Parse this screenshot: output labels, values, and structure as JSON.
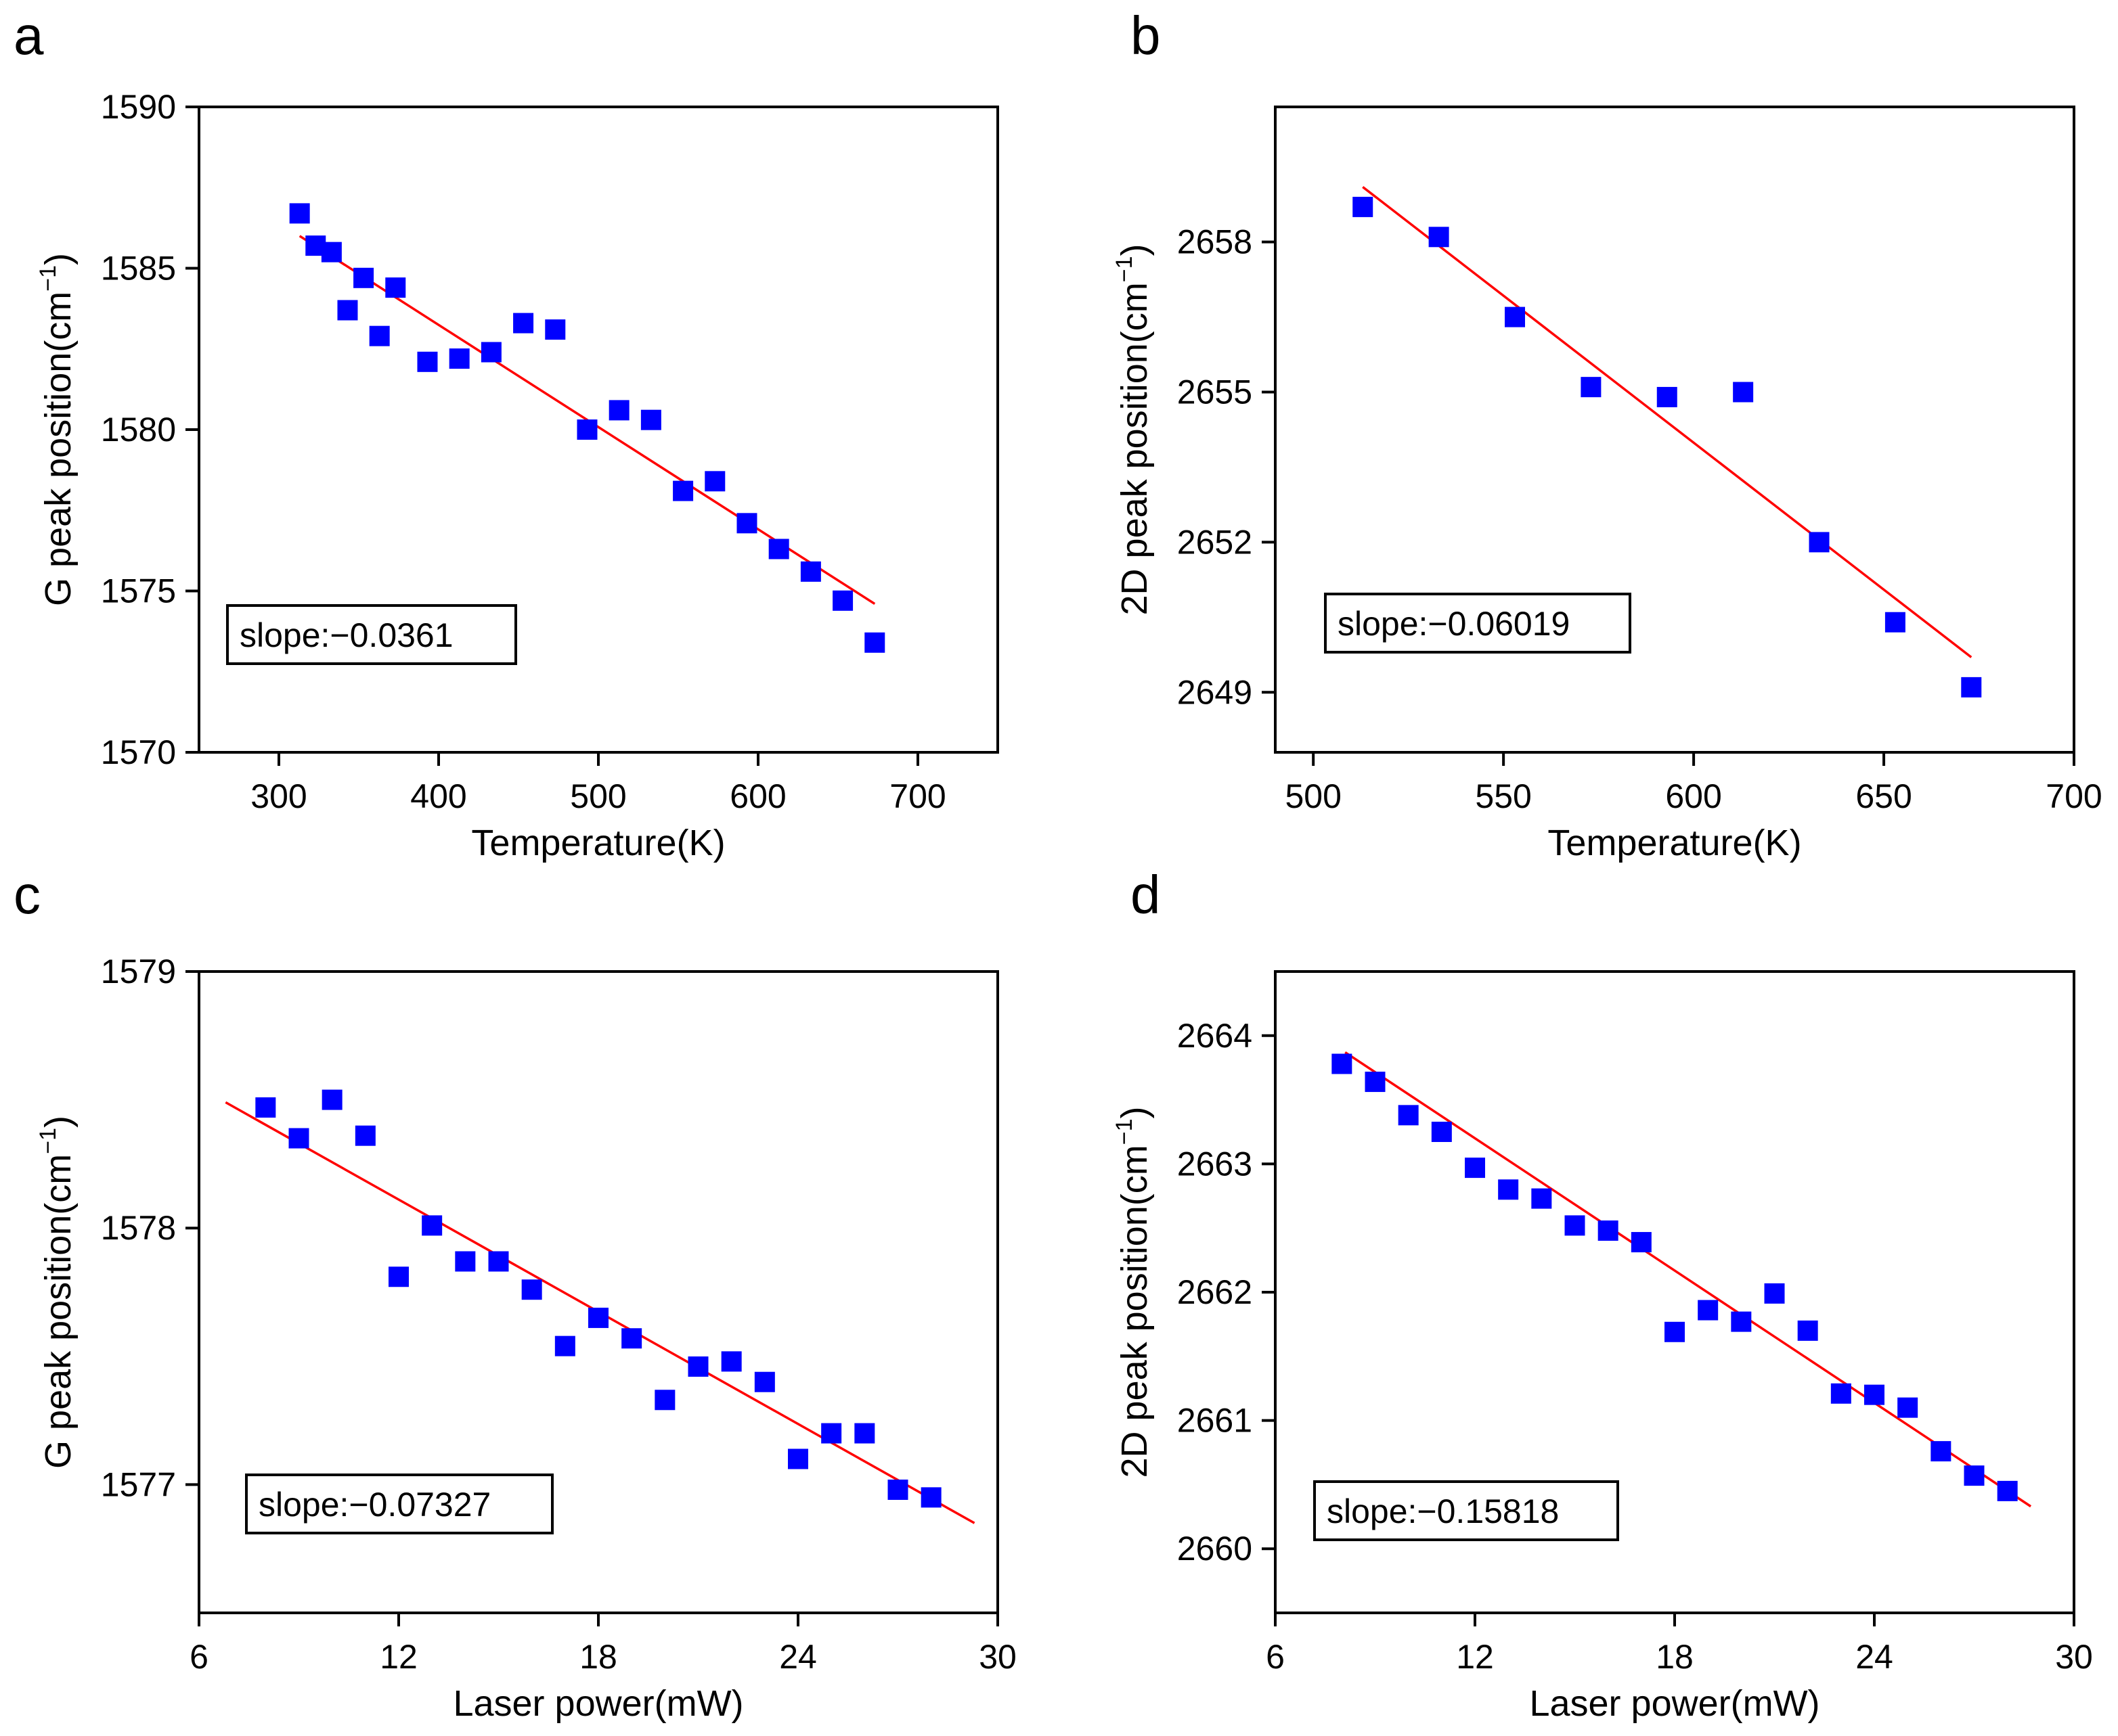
{
  "figure": {
    "panel_count": 4
  },
  "colors": {
    "marker": "#0000FF",
    "fit_line": "#FF0000",
    "axis": "#000000",
    "background": "#FFFFFF"
  },
  "chart_data": [
    {
      "panel_label": "a",
      "type": "scatter",
      "xlabel": "Temperature(K)",
      "ylabel": "G peak position(cm",
      "ylabel_sup": "−1",
      "ylabel_close": ")",
      "xlim": [
        250,
        750
      ],
      "ylim": [
        1570,
        1590
      ],
      "xticks": [
        300,
        400,
        500,
        600,
        700
      ],
      "yticks": [
        1570,
        1575,
        1580,
        1585,
        1590
      ],
      "annotation": "slope:−0.0361",
      "annotation_pos": "bottom-left",
      "series": [
        {
          "name": "data",
          "x": [
            313,
            323,
            333,
            343,
            353,
            363,
            373,
            393,
            413,
            433,
            453,
            473,
            493,
            513,
            533,
            553,
            573,
            593,
            613,
            633,
            653,
            673
          ],
          "y": [
            1586.7,
            1585.7,
            1585.5,
            1583.7,
            1584.7,
            1582.9,
            1584.4,
            1582.1,
            1582.2,
            1582.4,
            1583.3,
            1583.1,
            1580.0,
            1580.6,
            1580.3,
            1578.1,
            1578.4,
            1577.1,
            1576.3,
            1575.6,
            1574.7,
            1573.4
          ]
        }
      ],
      "fit": {
        "x": [
          313,
          673
        ],
        "y": [
          1586.0,
          1574.6
        ]
      }
    },
    {
      "panel_label": "b",
      "type": "scatter",
      "xlabel": "Temperature(K)",
      "ylabel": "2D peak position(cm",
      "ylabel_sup": "−1",
      "ylabel_close": ")",
      "xlim": [
        490,
        700
      ],
      "ylim": [
        2647.8,
        2660.7
      ],
      "xticks": [
        500,
        550,
        600,
        650,
        700
      ],
      "yticks": [
        2649,
        2652,
        2655,
        2658
      ],
      "annotation": "slope:−0.06019",
      "annotation_pos": "bottom-left",
      "series": [
        {
          "name": "data",
          "x": [
            513,
            533,
            553,
            573,
            593,
            613,
            633,
            653,
            673
          ],
          "y": [
            2658.7,
            2658.1,
            2656.5,
            2655.1,
            2654.9,
            2655.0,
            2652.0,
            2650.4,
            2649.1
          ]
        }
      ],
      "fit": {
        "x": [
          513,
          673
        ],
        "y": [
          2659.1,
          2649.7
        ]
      }
    },
    {
      "panel_label": "c",
      "type": "scatter",
      "xlabel": "Laser power(mW)",
      "ylabel": "G peak position(cm",
      "ylabel_sup": "−1",
      "ylabel_close": ")",
      "xlim": [
        6,
        30
      ],
      "ylim": [
        1576.5,
        1579
      ],
      "xticks": [
        6,
        12,
        18,
        24,
        30
      ],
      "yticks": [
        1577,
        1578,
        1579
      ],
      "annotation": "slope:−0.07327",
      "annotation_pos": "bottom-left",
      "series": [
        {
          "name": "data",
          "x": [
            8,
            9,
            10,
            11,
            12,
            13,
            14,
            15,
            16,
            17,
            18,
            19,
            20,
            21,
            22,
            23,
            24,
            25,
            26,
            27,
            28
          ],
          "y": [
            1578.47,
            1578.35,
            1578.5,
            1578.36,
            1577.81,
            1578.01,
            1577.87,
            1577.87,
            1577.76,
            1577.54,
            1577.65,
            1577.57,
            1577.33,
            1577.46,
            1577.48,
            1577.4,
            1577.1,
            1577.2,
            1577.2,
            1576.98,
            1576.95
          ]
        }
      ],
      "fit": {
        "x": [
          6.8,
          29.3
        ],
        "y": [
          1578.49,
          1576.85
        ]
      }
    },
    {
      "panel_label": "d",
      "type": "scatter",
      "xlabel": "Laser power(mW)",
      "ylabel": "2D peak position(cm",
      "ylabel_sup": "−1",
      "ylabel_close": ")",
      "xlim": [
        6,
        30
      ],
      "ylim": [
        2659.5,
        2664.5
      ],
      "xticks": [
        6,
        12,
        18,
        24,
        30
      ],
      "yticks": [
        2660,
        2661,
        2662,
        2663,
        2664
      ],
      "annotation": "slope:−0.15818",
      "annotation_pos": "bottom-left",
      "series": [
        {
          "name": "data",
          "x": [
            8,
            9,
            10,
            11,
            12,
            13,
            14,
            15,
            16,
            17,
            18,
            19,
            20,
            21,
            22,
            23,
            24,
            25,
            26,
            27,
            28
          ],
          "y": [
            2663.78,
            2663.64,
            2663.38,
            2663.25,
            2662.97,
            2662.8,
            2662.73,
            2662.52,
            2662.48,
            2662.39,
            2661.69,
            2661.86,
            2661.77,
            2661.99,
            2661.7,
            2661.21,
            2661.2,
            2661.1,
            2660.76,
            2660.57,
            2660.45
          ]
        }
      ],
      "fit": {
        "x": [
          8.1,
          28.7
        ],
        "y": [
          2663.87,
          2660.33
        ]
      }
    }
  ]
}
